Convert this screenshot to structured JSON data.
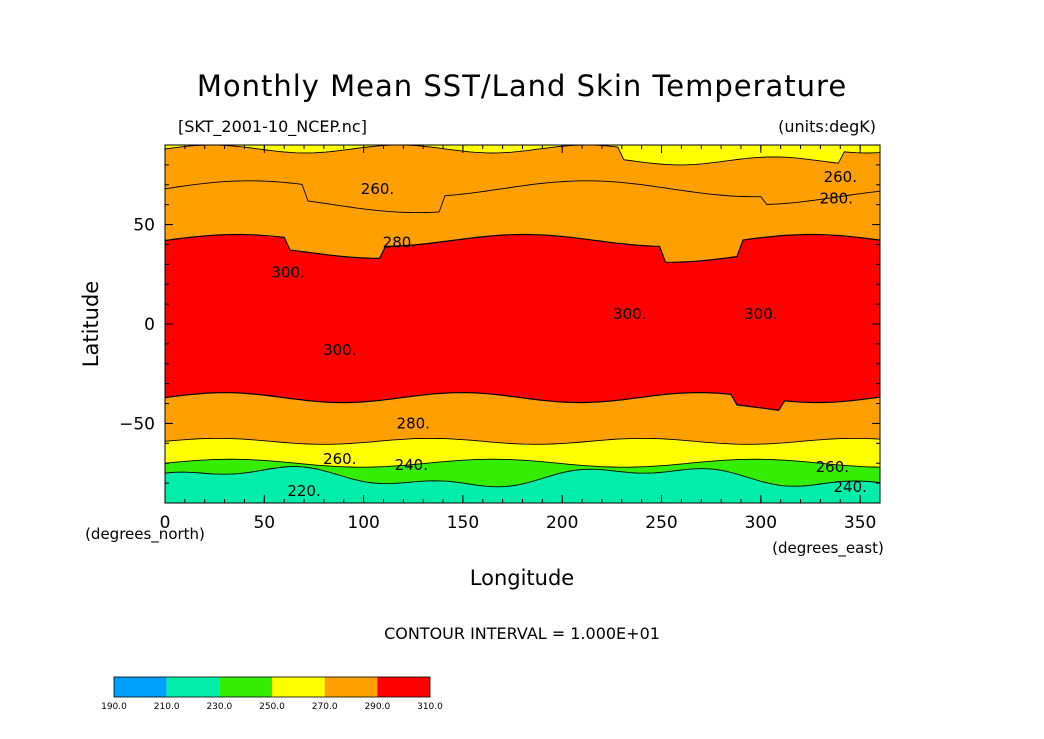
{
  "chart_data": {
    "type": "heatmap",
    "title": "Monthly Mean SST/Land Skin Temperature",
    "subtitle_left": "[SKT_2001-10_NCEP.nc]",
    "subtitle_right": "(units:degK)",
    "xlabel": "Longitude",
    "ylabel": "Latitude",
    "x_unit_label": "(degrees_east)",
    "y_unit_label": "(degrees_north)",
    "xlim": [
      0,
      360
    ],
    "ylim": [
      -90,
      90
    ],
    "x_ticks": [
      "0",
      "50",
      "100",
      "150",
      "200",
      "250",
      "300",
      "350"
    ],
    "x_tick_values": [
      0,
      50,
      100,
      150,
      200,
      250,
      300,
      350
    ],
    "y_ticks": [
      "50",
      "0",
      "−50"
    ],
    "y_tick_values": [
      50,
      0,
      -50
    ],
    "contour_interval_text": "CONTOUR INTERVAL = 1.000E+01",
    "contour_labels": [
      {
        "text": "260.",
        "lon": 107,
        "lat": 68
      },
      {
        "text": "280.",
        "lon": 118,
        "lat": 41
      },
      {
        "text": "300.",
        "lon": 62,
        "lat": 26
      },
      {
        "text": "300.",
        "lon": 88,
        "lat": -13
      },
      {
        "text": "300.",
        "lon": 234,
        "lat": 5
      },
      {
        "text": "300.",
        "lon": 300,
        "lat": 5
      },
      {
        "text": "280.",
        "lon": 125,
        "lat": -50
      },
      {
        "text": "260.",
        "lon": 88,
        "lat": -68
      },
      {
        "text": "240.",
        "lon": 124,
        "lat": -71
      },
      {
        "text": "220.",
        "lon": 70,
        "lat": -84
      },
      {
        "text": "260.",
        "lon": 336,
        "lat": -72
      },
      {
        "text": "240.",
        "lon": 345,
        "lat": -82
      },
      {
        "text": "260.",
        "lon": 340,
        "lat": 74
      },
      {
        "text": "280.",
        "lon": 338,
        "lat": 63
      }
    ],
    "bands": [
      {
        "range": "290-310",
        "color": "#ff0000",
        "north_lat": 42,
        "south_lat": -37
      },
      {
        "range": "270-290",
        "color": "#ff9f00",
        "north_lat": 68,
        "south_lat": -59
      },
      {
        "range": "250-270",
        "color": "#ffff00",
        "north_lat": 88,
        "south_lat": -70
      },
      {
        "range": "230-250",
        "color": "#33ee00",
        "south_lat": -77
      },
      {
        "range": "210-230",
        "color": "#00eeaa",
        "south_lat": -90
      }
    ],
    "colorbar": {
      "labels": [
        "190.0",
        "210.0",
        "230.0",
        "250.0",
        "270.0",
        "290.0",
        "310.0"
      ],
      "values": [
        190,
        210,
        230,
        250,
        270,
        290,
        310
      ],
      "colors": [
        "#00a0ff",
        "#00eeaa",
        "#33ee00",
        "#ffff00",
        "#ff9f00",
        "#ff0000"
      ]
    }
  }
}
